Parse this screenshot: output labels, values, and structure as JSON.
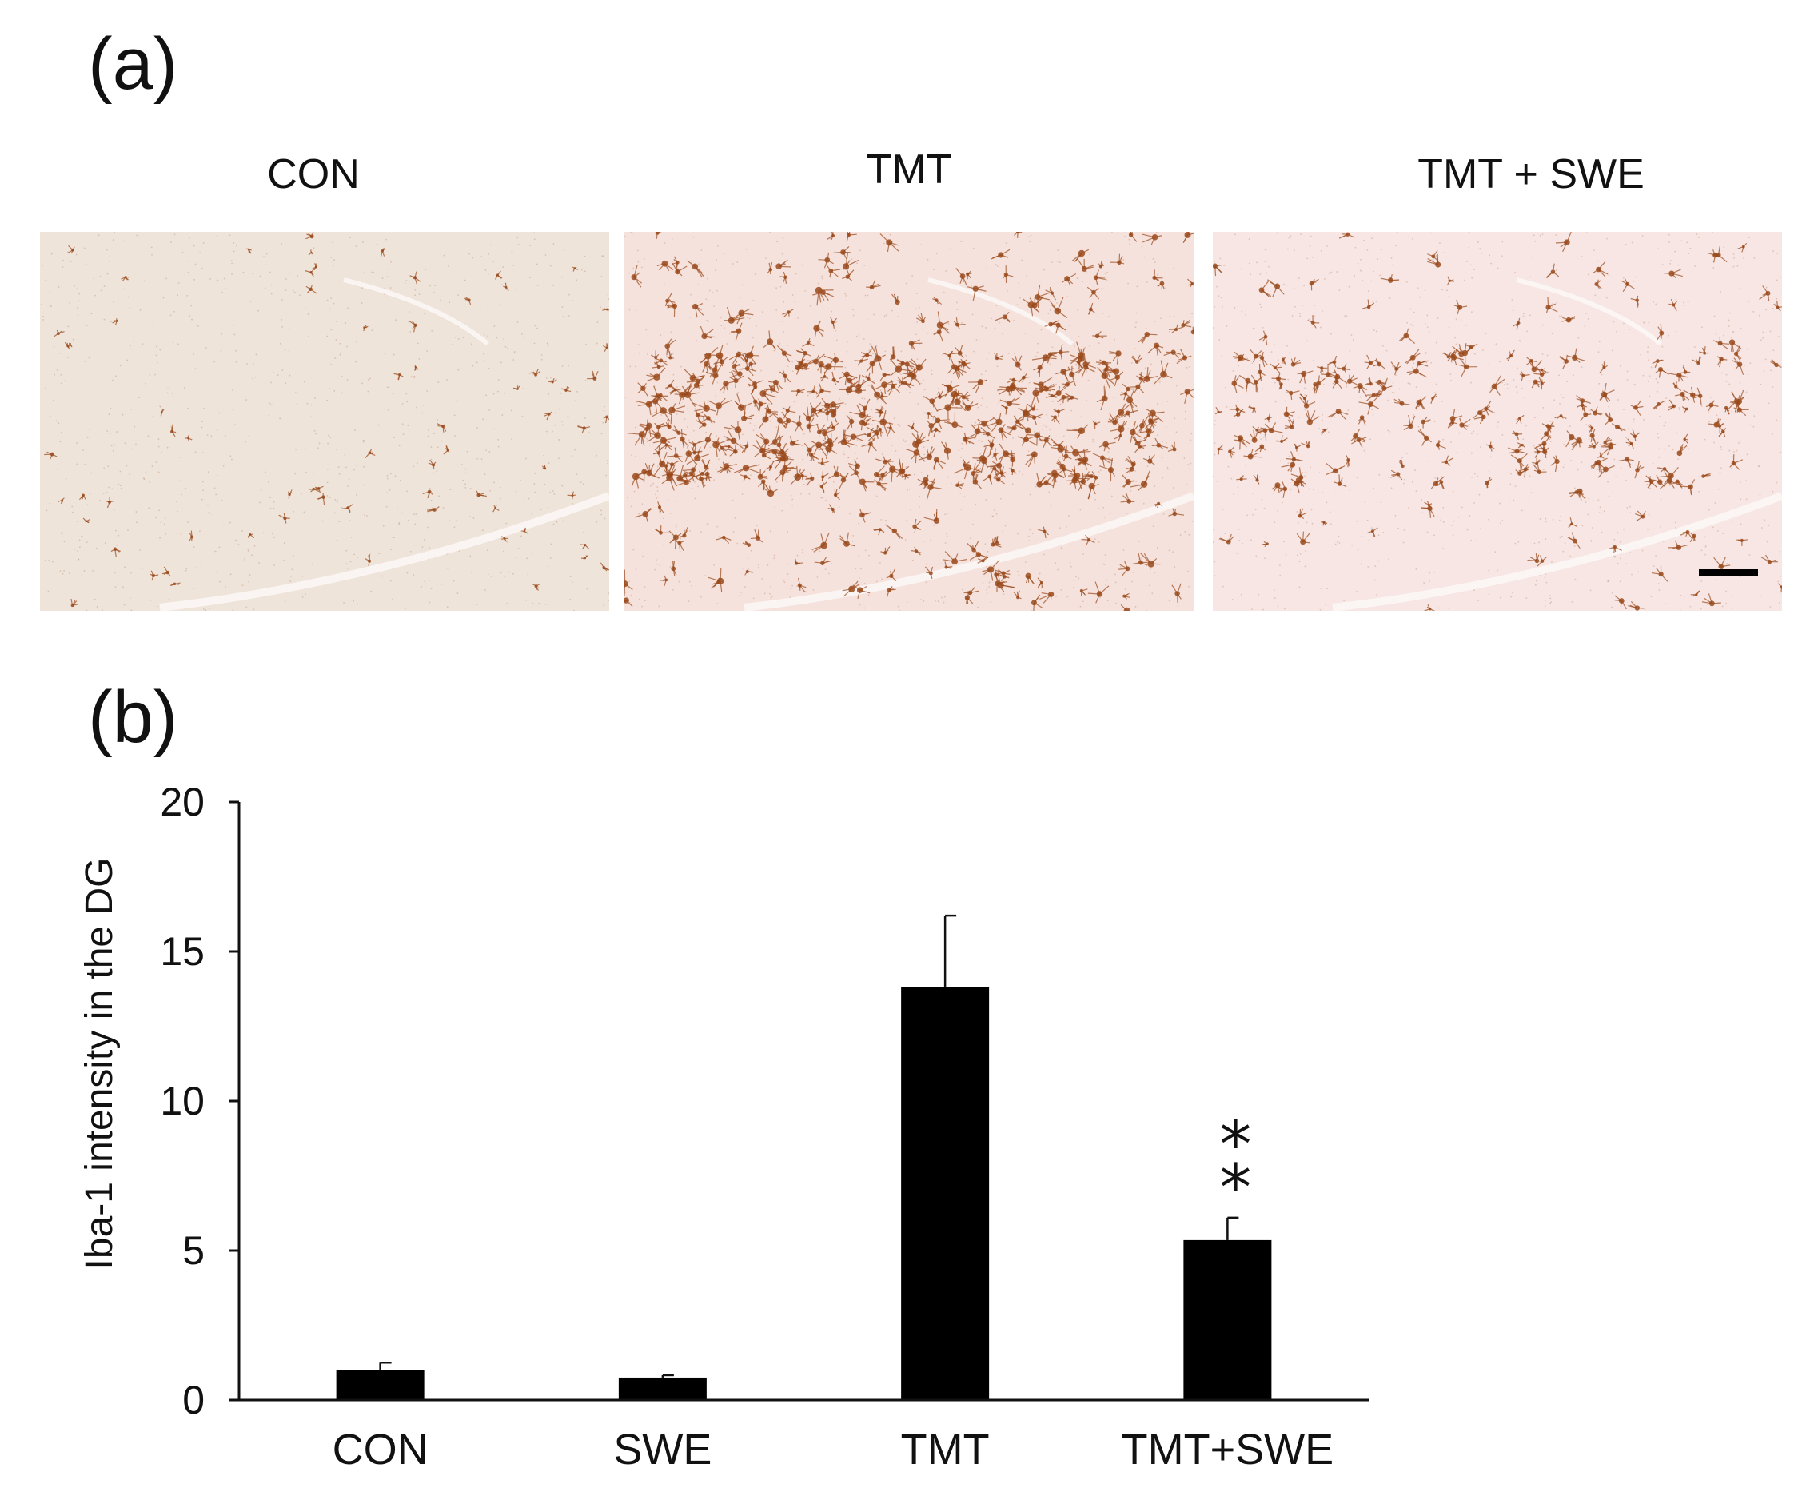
{
  "figure": {
    "panel_a_label": "(a)",
    "panel_b_label": "(b)",
    "image_labels": [
      "CON",
      "TMT",
      "TMT + SWE"
    ]
  },
  "chart_data": {
    "type": "bar",
    "categories": [
      "CON",
      "SWE",
      "TMT",
      "TMT+SWE"
    ],
    "values": [
      1.0,
      0.75,
      13.8,
      5.35
    ],
    "errors": [
      0.25,
      0.08,
      2.4,
      0.75
    ],
    "annotations": [
      "",
      "",
      "",
      "*\n*"
    ],
    "ylabel": "Iba-1 intensity in the DG",
    "xlabel": "",
    "ylim": [
      0,
      20
    ],
    "yticks": [
      0,
      5,
      10,
      15,
      20
    ],
    "bar_color": "#000000",
    "grid": false,
    "legend": "none"
  },
  "colors": {
    "tissue_con": "#efe4da",
    "tissue_tmt": "#f6e2dc",
    "tissue_swe": "#f7e6e3",
    "stain": "#9a4a1c"
  }
}
